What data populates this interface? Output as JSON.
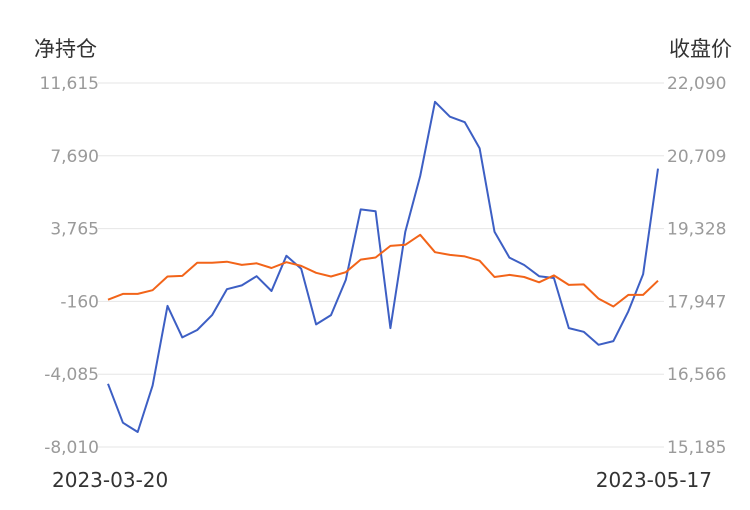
{
  "chart_data": {
    "type": "line",
    "left_axis_title": "净持仓",
    "right_axis_title": "收盘价",
    "x_start_label": "2023-03-20",
    "x_end_label": "2023-05-17",
    "left_axis": {
      "ylim": [
        -8010,
        11615
      ],
      "ticks": [
        "11,615",
        "7,690",
        "3,765",
        "-160",
        "-4,085",
        "-8,010"
      ]
    },
    "right_axis": {
      "ylim": [
        15185,
        22090
      ],
      "ticks": [
        "22,090",
        "20,709",
        "19,328",
        "17,947",
        "16,566",
        "15,185"
      ]
    },
    "grid": true,
    "series": [
      {
        "axis": "left",
        "color": "#3d5fc4",
        "values": [
          -4600,
          -6700,
          -7200,
          -4700,
          -400,
          -2100,
          -1700,
          -900,
          500,
          700,
          1200,
          400,
          2300,
          1600,
          -1400,
          -900,
          1000,
          4800,
          4700,
          -1600,
          3600,
          6600,
          10600,
          9800,
          9500,
          8100,
          3600,
          2200,
          1800,
          1200,
          1100,
          -1600,
          -1800,
          -2500,
          -2300,
          -700,
          1300,
          7000
        ]
      },
      {
        "axis": "right",
        "color": "#f26419",
        "values": [
          17980,
          18090,
          18090,
          18160,
          18420,
          18430,
          18680,
          18680,
          18700,
          18640,
          18670,
          18580,
          18690,
          18620,
          18490,
          18420,
          18500,
          18740,
          18780,
          19000,
          19020,
          19210,
          18880,
          18830,
          18800,
          18720,
          18410,
          18450,
          18410,
          18310,
          18440,
          18260,
          18270,
          18000,
          17850,
          18070,
          18070,
          18340
        ]
      }
    ]
  }
}
